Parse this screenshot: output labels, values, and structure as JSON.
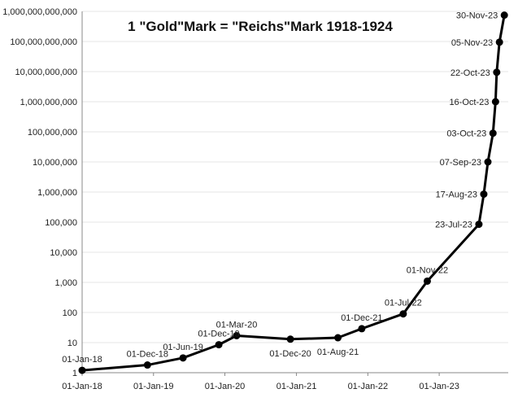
{
  "chart_data": {
    "type": "line",
    "title": "1 \"Gold\"Mark = \"Reichs\"Mark 1918-1924",
    "xlabel": "",
    "ylabel": "",
    "y_scale": "log",
    "ylim": [
      1,
      1000000000000
    ],
    "xlim": [
      "1918-01-01",
      "1923-12-20"
    ],
    "grid": "horizontal",
    "y_ticks": [
      {
        "value": 1,
        "label": "1"
      },
      {
        "value": 10,
        "label": "10"
      },
      {
        "value": 100,
        "label": "100"
      },
      {
        "value": 1000,
        "label": "1,000"
      },
      {
        "value": 10000,
        "label": "10,000"
      },
      {
        "value": 100000,
        "label": "100,000"
      },
      {
        "value": 1000000,
        "label": "1,000,000"
      },
      {
        "value": 10000000,
        "label": "10,000,000"
      },
      {
        "value": 100000000,
        "label": "100,000,000"
      },
      {
        "value": 1000000000,
        "label": "1,000,000,000"
      },
      {
        "value": 10000000000,
        "label": "10,000,000,000"
      },
      {
        "value": 100000000000,
        "label": "100,000,000,000"
      },
      {
        "value": 1000000000000,
        "label": "1,000,000,000,000"
      }
    ],
    "x_ticks": [
      {
        "date": "1918-01-01",
        "label": "01-Jan-18"
      },
      {
        "date": "1919-01-01",
        "label": "01-Jan-19"
      },
      {
        "date": "1920-01-01",
        "label": "01-Jan-20"
      },
      {
        "date": "1921-01-01",
        "label": "01-Jan-21"
      },
      {
        "date": "1922-01-01",
        "label": "01-Jan-22"
      },
      {
        "date": "1923-01-01",
        "label": "01-Jan-23"
      }
    ],
    "series": [
      {
        "points": [
          {
            "date": "1918-01-01",
            "value": 1.2,
            "label": "01-Jan-18",
            "label_pos": "above"
          },
          {
            "date": "1918-12-01",
            "value": 1.8,
            "label": "01-Dec-18",
            "label_pos": "above"
          },
          {
            "date": "1919-06-01",
            "value": 3.1,
            "label": "01-Jun-19",
            "label_pos": "above"
          },
          {
            "date": "1919-12-01",
            "value": 8.5,
            "label": "01-Dec-19",
            "label_pos": "above"
          },
          {
            "date": "1920-03-01",
            "value": 17,
            "label": "01-Mar-20",
            "label_pos": "above"
          },
          {
            "date": "1920-12-01",
            "value": 13,
            "label": "01-Dec-20",
            "label_pos": "below"
          },
          {
            "date": "1921-08-01",
            "value": 14.5,
            "label": "01-Aug-21",
            "label_pos": "below"
          },
          {
            "date": "1921-12-01",
            "value": 29,
            "label": "01-Dec-21",
            "label_pos": "above"
          },
          {
            "date": "1922-07-01",
            "value": 90,
            "label": "01-Jul-22",
            "label_pos": "above"
          },
          {
            "date": "1922-11-01",
            "value": 1100,
            "label": "01-Nov-22",
            "label_pos": "above"
          },
          {
            "date": "1923-07-23",
            "value": 85000,
            "label": "23-Jul-23",
            "label_pos": "left"
          },
          {
            "date": "1923-08-17",
            "value": 850000,
            "label": "17-Aug-23",
            "label_pos": "left"
          },
          {
            "date": "1923-09-07",
            "value": 10000000,
            "label": "07-Sep-23",
            "label_pos": "left"
          },
          {
            "date": "1923-10-03",
            "value": 90000000,
            "label": "03-Oct-23",
            "label_pos": "left"
          },
          {
            "date": "1923-10-16",
            "value": 1000000000,
            "label": "16-Oct-23",
            "label_pos": "left"
          },
          {
            "date": "1923-10-22",
            "value": 9500000000,
            "label": "22-Oct-23",
            "label_pos": "left"
          },
          {
            "date": "1923-11-05",
            "value": 95000000000,
            "label": "05-Nov-23",
            "label_pos": "left"
          },
          {
            "date": "1923-11-30",
            "value": 750000000000,
            "label": "30-Nov-23",
            "label_pos": "left"
          }
        ]
      }
    ]
  }
}
